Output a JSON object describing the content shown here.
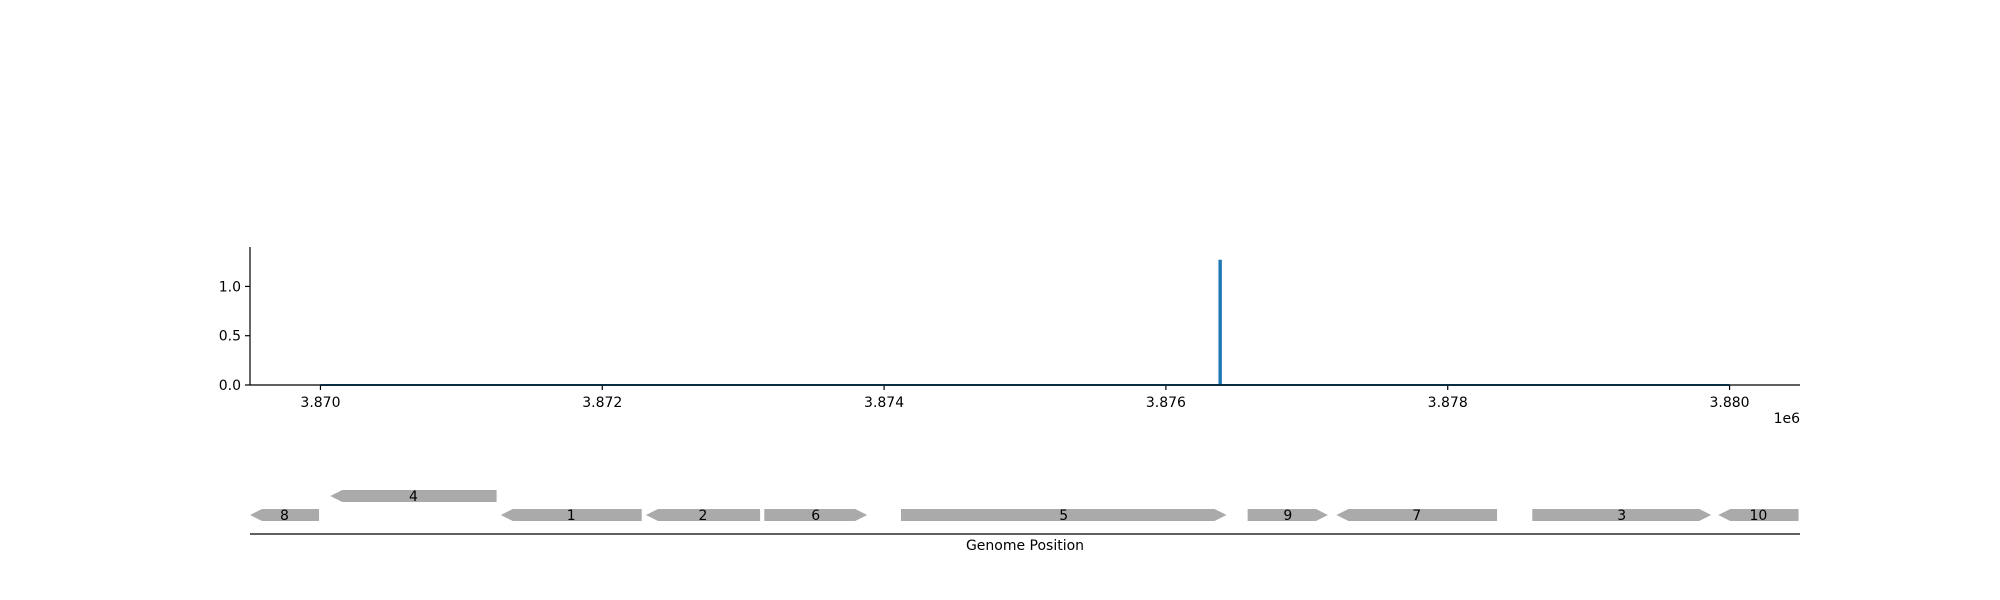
{
  "chart_data": [
    {
      "type": "line",
      "title": "",
      "xlabel": "",
      "ylabel": "",
      "x_offset_label": "1e6",
      "xlim": [
        3869500,
        3880500
      ],
      "ylim": [
        0,
        1.4
      ],
      "x_ticks": [
        3870000,
        3872000,
        3874000,
        3876000,
        3878000,
        3880000
      ],
      "x_tick_labels": [
        "3.870",
        "3.872",
        "3.874",
        "3.876",
        "3.878",
        "3.880"
      ],
      "y_ticks": [
        0,
        0.5,
        1.0
      ],
      "y_tick_labels": [
        "0.0",
        "0.5",
        "1.0"
      ],
      "grid": false,
      "series_color": "#1f77b4",
      "series": [
        {
          "x": [
            3870000,
            3876380,
            3876380,
            3876390,
            3876390,
            3880000
          ],
          "y": [
            0,
            0,
            1.26,
            1.26,
            0,
            0
          ]
        }
      ]
    },
    {
      "type": "gene-track",
      "xlabel": "Genome Position",
      "xlim": [
        3869500,
        3880500
      ],
      "gene_color": "#aaaaaa",
      "genes": [
        {
          "label": "8",
          "start": 3869500,
          "end": 3869990,
          "strand": "-",
          "row": 0
        },
        {
          "label": "4",
          "start": 3870070,
          "end": 3871250,
          "strand": "-",
          "row": 1
        },
        {
          "label": "1",
          "start": 3871280,
          "end": 3872280,
          "strand": "-",
          "row": 0
        },
        {
          "label": "2",
          "start": 3872310,
          "end": 3873120,
          "strand": "-",
          "row": 0
        },
        {
          "label": "6",
          "start": 3873150,
          "end": 3873880,
          "strand": "+",
          "row": 0
        },
        {
          "label": "5",
          "start": 3874120,
          "end": 3876430,
          "strand": "+",
          "row": 0
        },
        {
          "label": "9",
          "start": 3876580,
          "end": 3877150,
          "strand": "+",
          "row": 0
        },
        {
          "label": "7",
          "start": 3877210,
          "end": 3878350,
          "strand": "-",
          "row": 0
        },
        {
          "label": "3",
          "start": 3878600,
          "end": 3879870,
          "strand": "+",
          "row": 0
        },
        {
          "label": "10",
          "start": 3879920,
          "end": 3880490,
          "strand": "-",
          "row": 0
        }
      ]
    }
  ]
}
